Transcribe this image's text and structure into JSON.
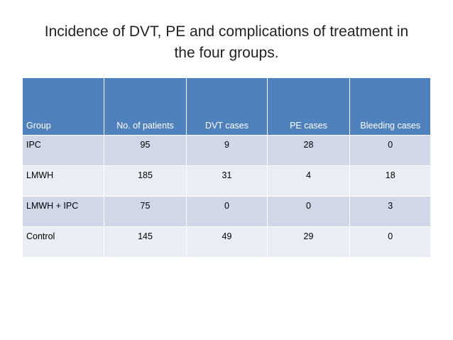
{
  "title": {
    "line1": "Incidence of DVT, PE and complications of treatment in",
    "line2": "the four groups."
  },
  "table": {
    "headers": [
      "Group",
      "No. of patients",
      "DVT cases",
      "PE cases",
      "Bleeding cases"
    ],
    "rows": [
      [
        "IPC",
        "95",
        "9",
        "28",
        "0"
      ],
      [
        "LMWH",
        "185",
        "31",
        "4",
        "18"
      ],
      [
        "LMWH + IPC",
        "75",
        "0",
        "0",
        "3"
      ],
      [
        "Control",
        "145",
        "49",
        "29",
        "0"
      ]
    ]
  },
  "colors": {
    "header": "#4f81bd",
    "row_odd": "#d0d8e8",
    "row_even": "#e9edf4"
  }
}
